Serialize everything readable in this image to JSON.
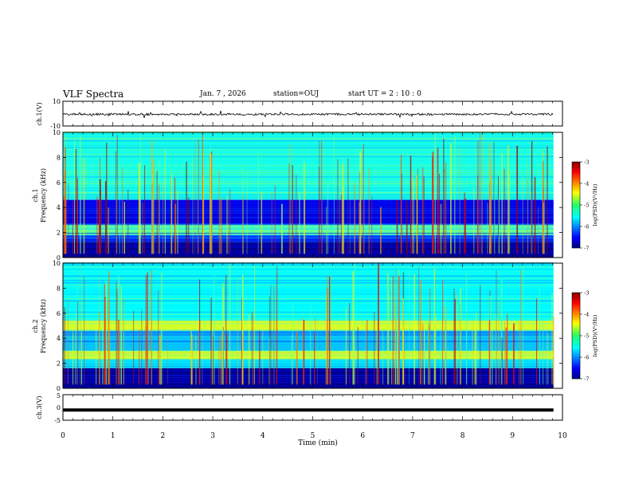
{
  "header": {
    "title": "VLF Spectra",
    "date_parts": [
      "Jan.",
      "7",
      ",",
      "2026"
    ],
    "station": "station=OUJ",
    "start_parts": [
      "start",
      "UT",
      "=",
      "2",
      ":",
      "10",
      ":",
      "0"
    ]
  },
  "chart_data": [
    {
      "type": "line",
      "title": "",
      "ylabel": "ch.1(V)",
      "ylim": [
        -10,
        10
      ],
      "y_ticks": [
        10,
        -10
      ],
      "description_level": -0.5,
      "x_range_min": [
        0,
        9.82
      ],
      "grid": false
    },
    {
      "type": "heatmap",
      "ylabel_lines": [
        "ch.1",
        "Frequency (kHz)"
      ],
      "ylim": [
        0,
        10
      ],
      "y_ticks": [
        0,
        2,
        4,
        6,
        8,
        10
      ],
      "x_range_min": [
        0,
        9.82
      ],
      "colorbar": {
        "label": "log(PSD)(V²/Hz)",
        "range": [
          -7,
          -3
        ],
        "ticks": [
          -3,
          -4,
          -5,
          -6,
          -7
        ]
      },
      "bands_khz": [
        {
          "from": 0,
          "to": 1.2,
          "level": -6.9
        },
        {
          "from": 1.2,
          "to": 1.8,
          "level": -6.3
        },
        {
          "from": 1.8,
          "to": 2.6,
          "level": -5.2
        },
        {
          "from": 2.6,
          "to": 4.6,
          "level": -6.6
        },
        {
          "from": 4.6,
          "to": 10,
          "level": -5.4
        }
      ]
    },
    {
      "type": "heatmap",
      "ylabel_lines": [
        "ch.2",
        "Frequency (kHz)"
      ],
      "ylim": [
        0,
        10
      ],
      "y_ticks": [
        0,
        2,
        4,
        6,
        8,
        10
      ],
      "x_range_min": [
        0,
        9.82
      ],
      "colorbar": {
        "label": "log(PSD)(V²/Hz)",
        "range": [
          -7,
          -3
        ],
        "ticks": [
          -3,
          -4,
          -5,
          -6,
          -7
        ]
      },
      "bands_khz": [
        {
          "from": 0,
          "to": 1.6,
          "level": -6.9
        },
        {
          "from": 1.6,
          "to": 2.3,
          "level": -5.6
        },
        {
          "from": 2.3,
          "to": 3.0,
          "level": -4.8
        },
        {
          "from": 3.0,
          "to": 4.6,
          "level": -5.8
        },
        {
          "from": 4.6,
          "to": 5.4,
          "level": -4.7
        },
        {
          "from": 5.4,
          "to": 10,
          "level": -5.5
        }
      ]
    },
    {
      "type": "line",
      "ylabel": "ch.3(V)",
      "ylim": [
        -5,
        5
      ],
      "y_ticks": [
        5,
        0,
        -5
      ],
      "level": -1.0,
      "x_range_min": [
        0,
        9.82
      ],
      "xlabel": "Time (min)",
      "xlim": [
        0,
        10
      ],
      "x_ticks": [
        0,
        1,
        2,
        3,
        4,
        5,
        6,
        7,
        8,
        9,
        10
      ]
    }
  ]
}
